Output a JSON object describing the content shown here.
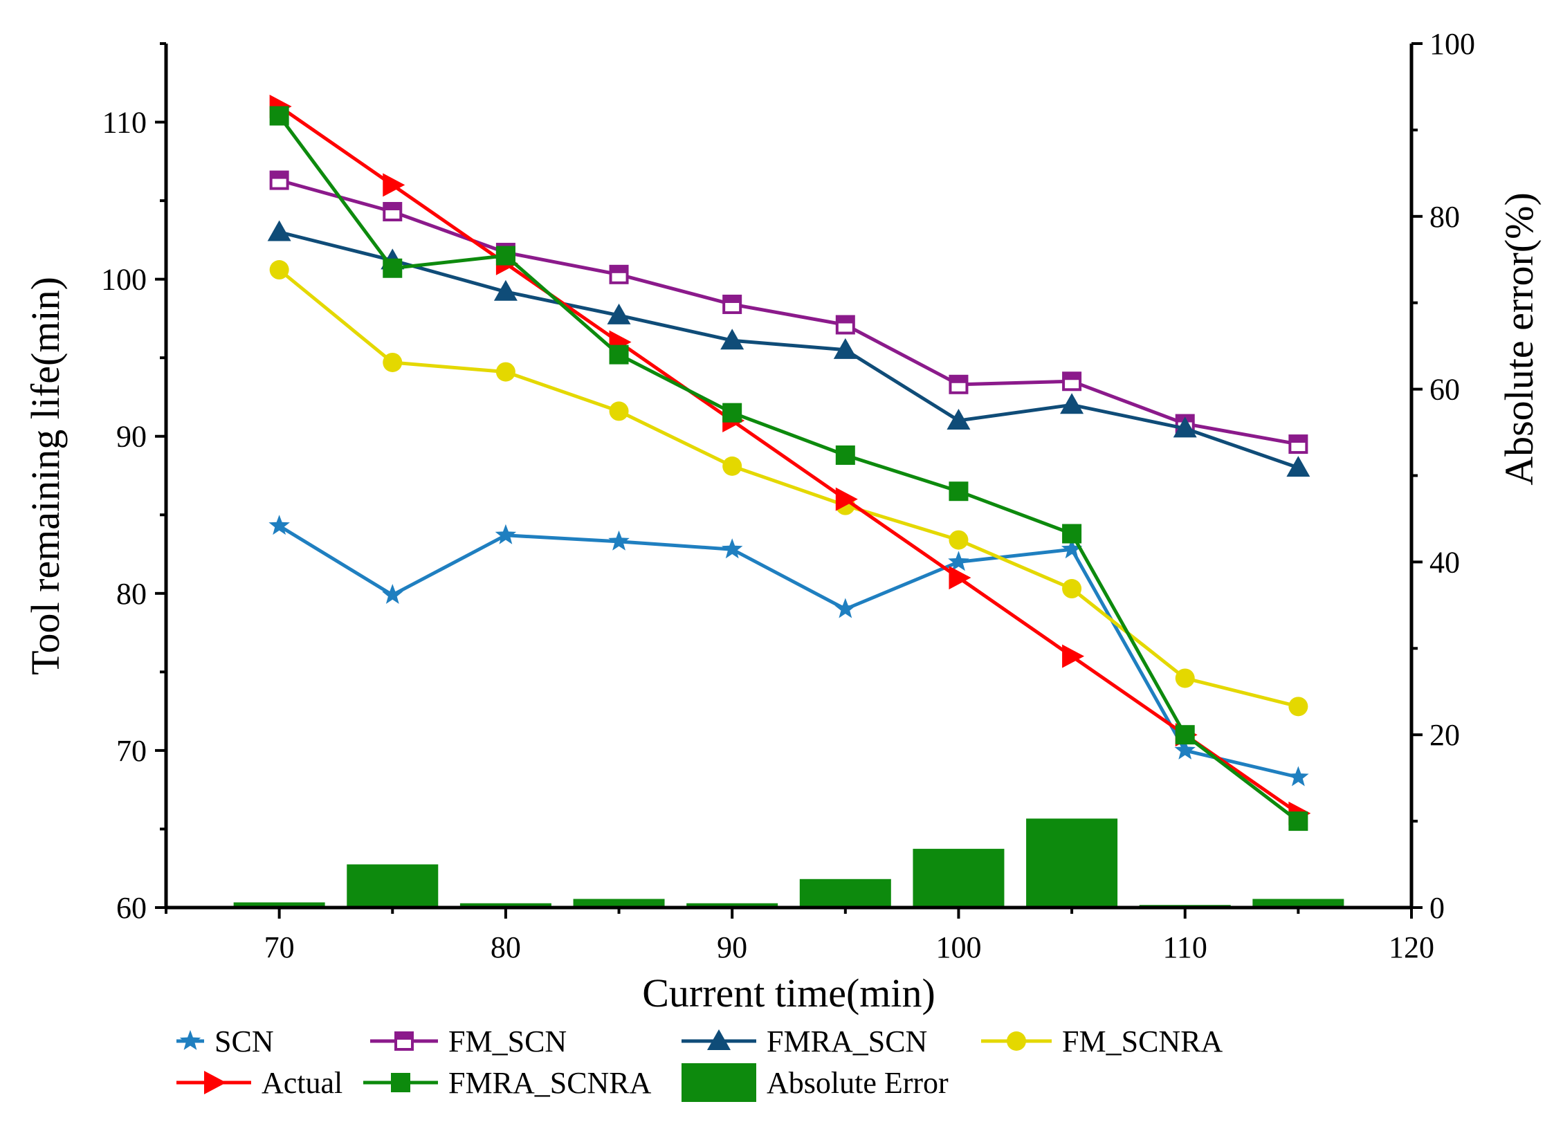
{
  "chart_data": {
    "type": "line",
    "title": "",
    "xlabel": "Current time(min)",
    "ylabel": "Tool remaining life(min)",
    "y2label": "Absolute error(%)",
    "xlim": [
      65,
      120
    ],
    "ylim": [
      60,
      115
    ],
    "y2lim": [
      0,
      100
    ],
    "x_ticks": [
      70,
      80,
      90,
      100,
      110,
      120
    ],
    "y_ticks": [
      60,
      70,
      80,
      90,
      100,
      110
    ],
    "y2_ticks": [
      0,
      20,
      40,
      60,
      80,
      100
    ],
    "x": [
      70,
      75,
      80,
      85,
      90,
      95,
      100,
      105,
      110,
      115
    ],
    "series": [
      {
        "name": "SCN",
        "color": "#1f7fc0",
        "marker": "star",
        "values": [
          84.3,
          79.9,
          83.7,
          83.3,
          82.8,
          79.0,
          82.0,
          82.8,
          70.0,
          68.3
        ]
      },
      {
        "name": "FM_SCN",
        "color": "#8b1a8b",
        "marker": "square-open",
        "values": [
          106.3,
          104.3,
          101.7,
          100.3,
          98.4,
          97.1,
          93.3,
          93.5,
          90.8,
          89.5
        ]
      },
      {
        "name": "FMRA_SCN",
        "color": "#0f4c78",
        "marker": "triangle",
        "values": [
          103.0,
          101.2,
          99.2,
          97.7,
          96.1,
          95.5,
          91.0,
          92.0,
          90.5,
          88.0
        ]
      },
      {
        "name": "FM_SCNRA",
        "color": "#e4d800",
        "marker": "circle",
        "values": [
          100.6,
          94.7,
          94.1,
          91.6,
          88.1,
          85.6,
          83.4,
          80.3,
          74.6,
          72.8
        ]
      },
      {
        "name": "Actual",
        "color": "#ff0000",
        "marker": "triangle-right",
        "values": [
          111.0,
          106.0,
          101.0,
          96.0,
          91.0,
          86.0,
          81.0,
          76.0,
          71.0,
          66.0
        ]
      },
      {
        "name": "FMRA_SCNRA",
        "color": "#0d8a0d",
        "marker": "square",
        "values": [
          110.4,
          100.7,
          101.5,
          95.2,
          91.5,
          88.8,
          86.5,
          83.8,
          71.0,
          65.5
        ]
      }
    ],
    "bars": {
      "name": "Absolute Error",
      "color": "#0d8a0d",
      "axis": "y2",
      "values": [
        0.6,
        5.0,
        0.5,
        1.0,
        0.5,
        3.3,
        6.8,
        10.3,
        0.3,
        1.0
      ]
    },
    "legend": {
      "placement": "bottom",
      "entries": [
        "SCN",
        "FM_SCN",
        "FMRA_SCN",
        "FM_SCNRA",
        "Actual",
        "FMRA_SCNRA",
        "Absolute Error"
      ]
    }
  }
}
